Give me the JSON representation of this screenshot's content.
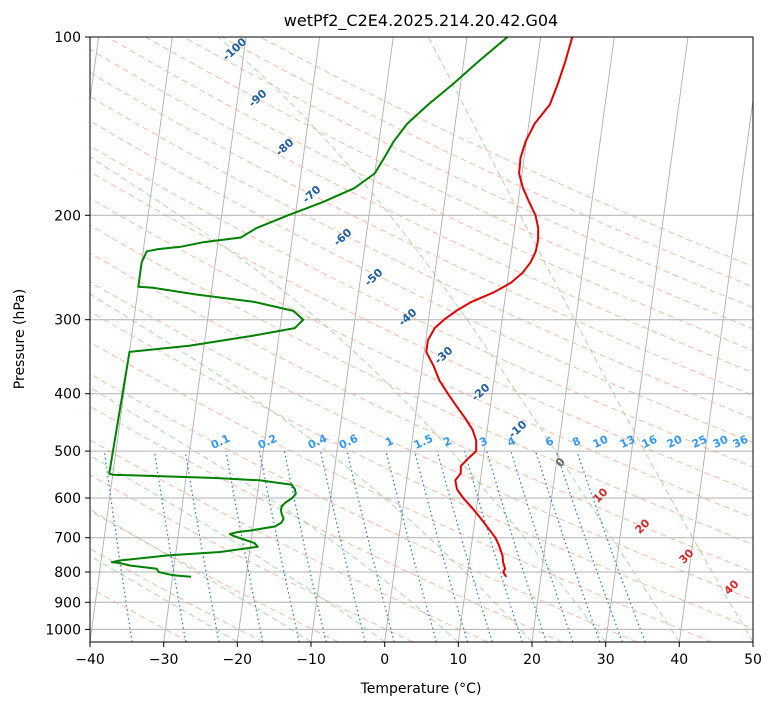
{
  "chart_data": {
    "type": "line",
    "title": "wetPf2_C2E4.2025.214.20.42.G04",
    "xlabel": "Temperature (°C)",
    "ylabel": "Pressure (hPa)",
    "xlim": [
      -40,
      50
    ],
    "ylim": [
      1050,
      100
    ],
    "y_scale": "log",
    "grid": true,
    "x_ticks": [
      "−40",
      "−30",
      "−20",
      "−10",
      "0",
      "10",
      "20",
      "30",
      "40",
      "50"
    ],
    "y_ticks": [
      "100",
      "200",
      "300",
      "400",
      "500",
      "600",
      "700",
      "800",
      "900",
      "1000"
    ],
    "series": [
      {
        "color": "#e00000",
        "pressure": [
          815,
          800,
          790,
          770,
          750,
          720,
          700,
          680,
          650,
          620,
          600,
          580,
          560,
          545,
          530,
          515,
          500,
          480,
          460,
          440,
          420,
          400,
          380,
          360,
          340,
          325,
          310,
          300,
          290,
          280,
          270,
          260,
          250,
          240,
          230,
          220,
          210,
          200,
          190,
          180,
          170,
          160,
          150,
          140,
          130,
          120,
          110,
          100
        ],
        "temperature": [
          15.3,
          14.8,
          15.0,
          14.6,
          14.4,
          13.7,
          13.1,
          12.2,
          10.8,
          9.2,
          8.0,
          7.0,
          6.6,
          7.2,
          7.1,
          7.9,
          8.9,
          8.7,
          8.0,
          6.8,
          5.4,
          4.0,
          2.6,
          1.6,
          0.3,
          0.3,
          1.0,
          2.1,
          3.6,
          5.5,
          8.3,
          10.5,
          11.9,
          12.8,
          13.3,
          13.4,
          13.2,
          12.6,
          11.5,
          10.4,
          9.6,
          9.5,
          9.9,
          10.8,
          12.5,
          13.2,
          13.8,
          14.3
        ]
      },
      {
        "color": "#008000",
        "pressure": [
          815,
          810,
          800,
          790,
          780,
          772,
          770,
          765,
          750,
          740,
          725,
          715,
          705,
          695,
          690,
          685,
          680,
          670,
          660,
          650,
          640,
          630,
          620,
          610,
          600,
          590,
          580,
          570,
          560,
          555,
          548,
          546,
          340,
          332,
          320,
          310,
          300,
          290,
          280,
          272,
          265,
          264,
          262,
          258,
          250,
          240,
          230,
          228,
          226,
          222,
          218,
          210,
          200,
          190,
          180,
          170,
          160,
          150,
          140,
          130,
          120,
          110,
          100
        ],
        "temperature": [
          -27.5,
          -30.0,
          -32.0,
          -32.3,
          -36.0,
          -37.5,
          -38.5,
          -37.5,
          -31.0,
          -24.0,
          -19.0,
          -19.5,
          -21.0,
          -22.5,
          -23.0,
          -22.0,
          -20.0,
          -17.0,
          -16.2,
          -16.0,
          -16.3,
          -16.5,
          -16.5,
          -16.0,
          -15.2,
          -14.8,
          -15.0,
          -15.5,
          -20.0,
          -26.0,
          -40.0,
          -40.5,
          -40.0,
          -32.0,
          -24.0,
          -18.0,
          -17.0,
          -18.5,
          -24.0,
          -32.0,
          -38.0,
          -40.0,
          -40.0,
          -40.0,
          -40.0,
          -40.0,
          -39.5,
          -38.0,
          -35.0,
          -32.0,
          -27.0,
          -25.0,
          -21.0,
          -16.5,
          -12.5,
          -10.0,
          -9.0,
          -8.0,
          -6.5,
          -4.0,
          -1.0,
          2.0,
          5.5
        ]
      }
    ],
    "dry_adiabat_labels": [
      "-100",
      "-90",
      "-80",
      "-70",
      "-60",
      "-50",
      "-40",
      "-30",
      "-20",
      "-10"
    ],
    "moist_adiabat_labels": [
      "0",
      "10",
      "20",
      "30",
      "40"
    ],
    "mixing_ratio_labels": [
      "0.1",
      "0.2",
      "0.4",
      "0.6",
      "1",
      "1.5",
      "2",
      "3",
      "4",
      "6",
      "8",
      "10",
      "13",
      "16",
      "20",
      "25",
      "30",
      "36"
    ]
  }
}
